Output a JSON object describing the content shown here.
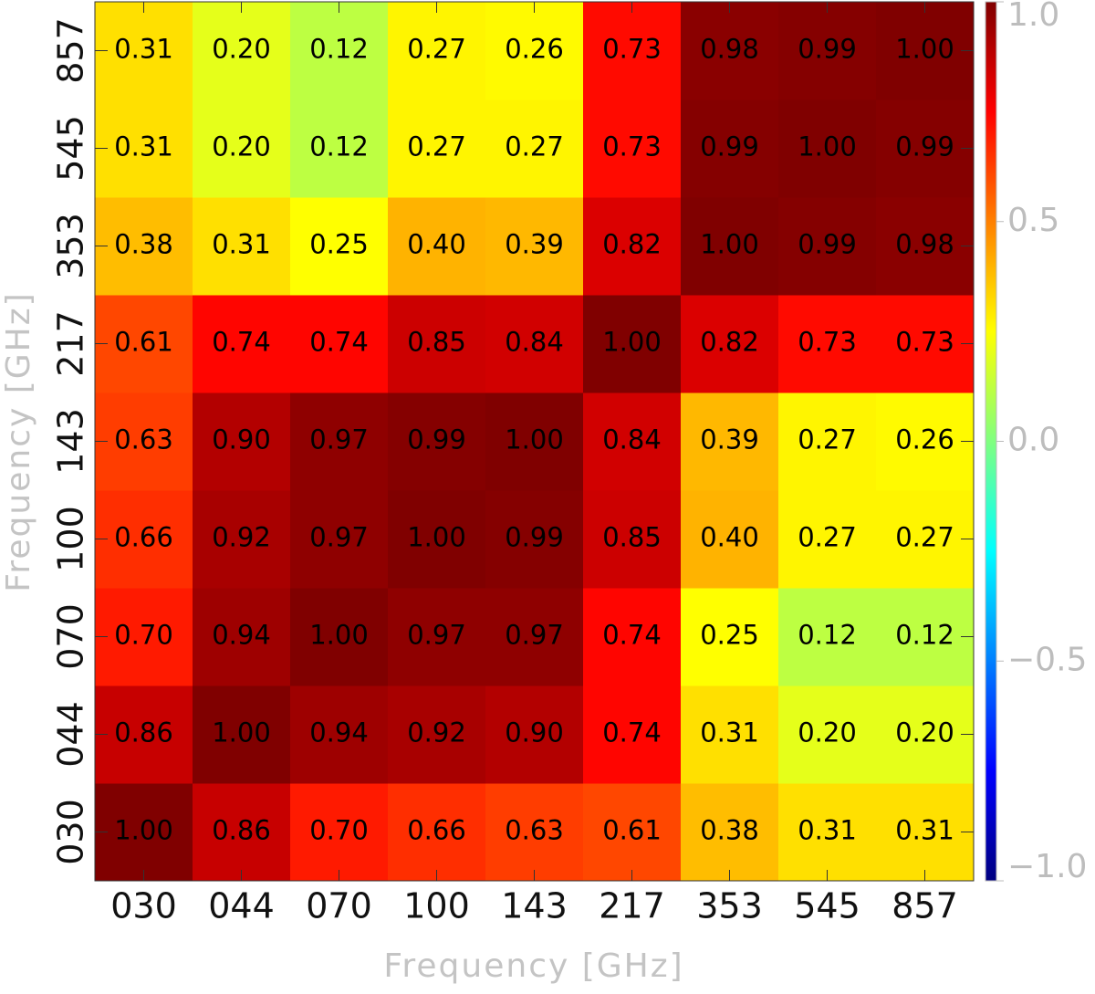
{
  "chart_data": {
    "type": "heatmap",
    "x_label": "Frequency [GHz]",
    "y_label": "Frequency [GHz]",
    "x_categories": [
      "030",
      "044",
      "070",
      "100",
      "143",
      "217",
      "353",
      "545",
      "857"
    ],
    "y_categories": [
      "030",
      "044",
      "070",
      "100",
      "143",
      "217",
      "353",
      "545",
      "857"
    ],
    "values": [
      [
        1.0,
        0.86,
        0.7,
        0.66,
        0.63,
        0.61,
        0.38,
        0.31,
        0.31
      ],
      [
        0.86,
        1.0,
        0.94,
        0.92,
        0.9,
        0.74,
        0.31,
        0.2,
        0.2
      ],
      [
        0.7,
        0.94,
        1.0,
        0.97,
        0.97,
        0.74,
        0.25,
        0.12,
        0.12
      ],
      [
        0.66,
        0.92,
        0.97,
        1.0,
        0.99,
        0.85,
        0.4,
        0.27,
        0.27
      ],
      [
        0.63,
        0.9,
        0.97,
        0.99,
        1.0,
        0.84,
        0.39,
        0.27,
        0.26
      ],
      [
        0.61,
        0.74,
        0.74,
        0.85,
        0.84,
        1.0,
        0.82,
        0.73,
        0.73
      ],
      [
        0.38,
        0.31,
        0.25,
        0.4,
        0.39,
        0.82,
        1.0,
        0.99,
        0.98
      ],
      [
        0.31,
        0.2,
        0.12,
        0.27,
        0.27,
        0.73,
        0.99,
        1.0,
        0.99
      ],
      [
        0.31,
        0.2,
        0.12,
        0.27,
        0.26,
        0.73,
        0.98,
        0.99,
        1.0
      ]
    ],
    "value_labels": [
      [
        "1.00",
        "0.86",
        "0.70",
        "0.66",
        "0.63",
        "0.61",
        "0.38",
        "0.31",
        "0.31"
      ],
      [
        "0.86",
        "1.00",
        "0.94",
        "0.92",
        "0.90",
        "0.74",
        "0.31",
        "0.20",
        "0.20"
      ],
      [
        "0.70",
        "0.94",
        "1.00",
        "0.97",
        "0.97",
        "0.74",
        "0.25",
        "0.12",
        "0.12"
      ],
      [
        "0.66",
        "0.92",
        "0.97",
        "1.00",
        "0.99",
        "0.85",
        "0.40",
        "0.27",
        "0.27"
      ],
      [
        "0.63",
        "0.90",
        "0.97",
        "0.99",
        "1.00",
        "0.84",
        "0.39",
        "0.27",
        "0.26"
      ],
      [
        "0.61",
        "0.74",
        "0.74",
        "0.85",
        "0.84",
        "1.00",
        "0.82",
        "0.73",
        "0.73"
      ],
      [
        "0.38",
        "0.31",
        "0.25",
        "0.40",
        "0.39",
        "0.82",
        "1.00",
        "0.99",
        "0.98"
      ],
      [
        "0.31",
        "0.20",
        "0.12",
        "0.27",
        "0.27",
        "0.73",
        "0.99",
        "1.00",
        "0.99"
      ],
      [
        "0.31",
        "0.20",
        "0.12",
        "0.27",
        "0.26",
        "0.73",
        "0.98",
        "0.99",
        "1.00"
      ]
    ],
    "colormap": "jet",
    "zlim": [
      -1,
      1
    ],
    "zticks": [
      {
        "value": 1,
        "label": "1.0"
      },
      0.5,
      {
        "value": 0,
        "label": "0.0"
      },
      {
        "value": -0.5,
        "label": "−0.5"
      },
      {
        "value": -1,
        "label": "−1.0"
      }
    ]
  }
}
